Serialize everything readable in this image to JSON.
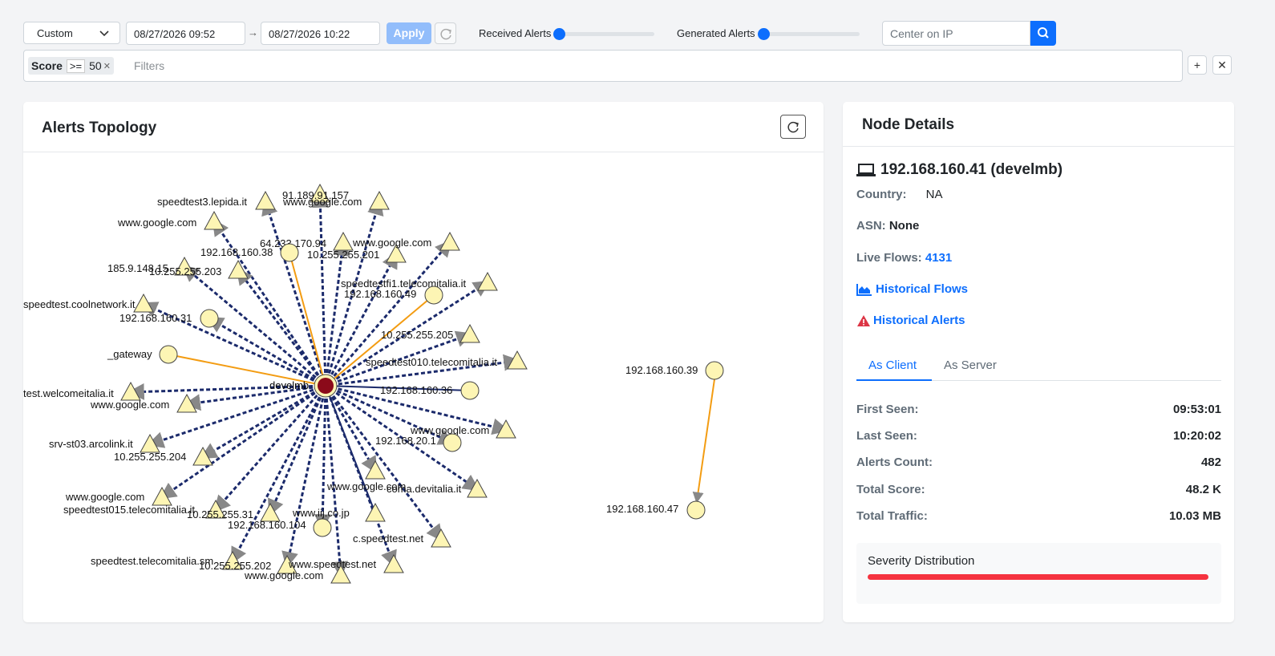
{
  "toolbar": {
    "range_select": "Custom",
    "date_from": "08/27/2026 09:52",
    "date_to": "08/27/2026 10:22",
    "apply_label": "Apply",
    "received_alerts_label": "Received Alerts",
    "generated_alerts_label": "Generated Alerts",
    "center_ip_placeholder": "Center on IP"
  },
  "filters": {
    "chip_key": "Score",
    "chip_op": ">=",
    "chip_value": "50",
    "placeholder": "Filters"
  },
  "topology": {
    "title": "Alerts Topology",
    "center_node": "develmb",
    "nodes": [
      {
        "label": "91.189.91.157",
        "shape": "triangle"
      },
      {
        "label": "speedtest3.lepida.it",
        "shape": "triangle"
      },
      {
        "label": "www.google.com",
        "shape": "triangle"
      },
      {
        "label": "www.google.com",
        "shape": "triangle"
      },
      {
        "label": "64.233.170.94",
        "shape": "triangle"
      },
      {
        "label": "192.168.160.38",
        "shape": "circle"
      },
      {
        "label": "10.255.255.201",
        "shape": "triangle"
      },
      {
        "label": "www.google.com",
        "shape": "triangle"
      },
      {
        "label": "185.9.148.15",
        "shape": "triangle"
      },
      {
        "label": "10.255.255.203",
        "shape": "triangle"
      },
      {
        "label": "speedtestfi1.telecomitalia.it",
        "shape": "triangle"
      },
      {
        "label": "192.168.160.49",
        "shape": "circle"
      },
      {
        "label": "speedtest.coolnetwork.it",
        "shape": "triangle"
      },
      {
        "label": "192.168.160.31",
        "shape": "circle"
      },
      {
        "label": "10.255.255.205",
        "shape": "triangle"
      },
      {
        "label": "_gateway",
        "shape": "circle"
      },
      {
        "label": "speedtest010.telecomitalia.it",
        "shape": "triangle"
      },
      {
        "label": "test.welcomeitalia.it",
        "shape": "triangle"
      },
      {
        "label": "192.168.160.36",
        "shape": "circle"
      },
      {
        "label": "www.google.com",
        "shape": "triangle"
      },
      {
        "label": "www.google.com",
        "shape": "triangle"
      },
      {
        "label": "srv-st03.arcolink.it",
        "shape": "triangle"
      },
      {
        "label": "192.168.20.1",
        "shape": "circle"
      },
      {
        "label": "10.255.255.204",
        "shape": "triangle"
      },
      {
        "label": "www.google.com",
        "shape": "triangle"
      },
      {
        "label": "coma.devitalia.it",
        "shape": "triangle"
      },
      {
        "label": "speedtest015.telecomitalia.it",
        "shape": "triangle"
      },
      {
        "label": "www.google.com",
        "shape": "triangle"
      },
      {
        "label": "10.255.255.31",
        "shape": "triangle"
      },
      {
        "label": "www.iij.co.jp",
        "shape": "triangle"
      },
      {
        "label": "192.168.160.104",
        "shape": "circle"
      },
      {
        "label": "c.speedtest.net",
        "shape": "triangle"
      },
      {
        "label": "speedtest.telecomitalia.sm",
        "shape": "triangle"
      },
      {
        "label": "10.255.255.202",
        "shape": "triangle"
      },
      {
        "label": "www.speedtest.net",
        "shape": "triangle"
      },
      {
        "label": "www.google.com",
        "shape": "triangle"
      },
      {
        "label": "192.168.160.39",
        "shape": "circle"
      },
      {
        "label": "192.168.160.47",
        "shape": "circle"
      }
    ]
  },
  "node_details": {
    "title": "Node Details",
    "host": "192.168.160.41 (develmb)",
    "country_label": "Country:",
    "country_value": "NA",
    "asn_label": "ASN:",
    "asn_value": "None",
    "live_flows_label": "Live Flows:",
    "live_flows_value": "4131",
    "historical_flows": "Historical Flows",
    "historical_alerts": "Historical Alerts",
    "tabs": [
      "As Client",
      "As Server"
    ],
    "stats": [
      {
        "label": "First Seen:",
        "value": "09:53:01"
      },
      {
        "label": "Last Seen:",
        "value": "10:20:02"
      },
      {
        "label": "Alerts Count:",
        "value": "482"
      },
      {
        "label": "Total Score:",
        "value": "48.2 K"
      },
      {
        "label": "Total Traffic:",
        "value": "10.03 MB"
      }
    ],
    "severity_title": "Severity Distribution",
    "colors": {
      "accent": "#0d6efd",
      "severity": "#f5333f",
      "edge_dark": "#1b2a6b",
      "edge_orange": "#f39c12"
    }
  }
}
